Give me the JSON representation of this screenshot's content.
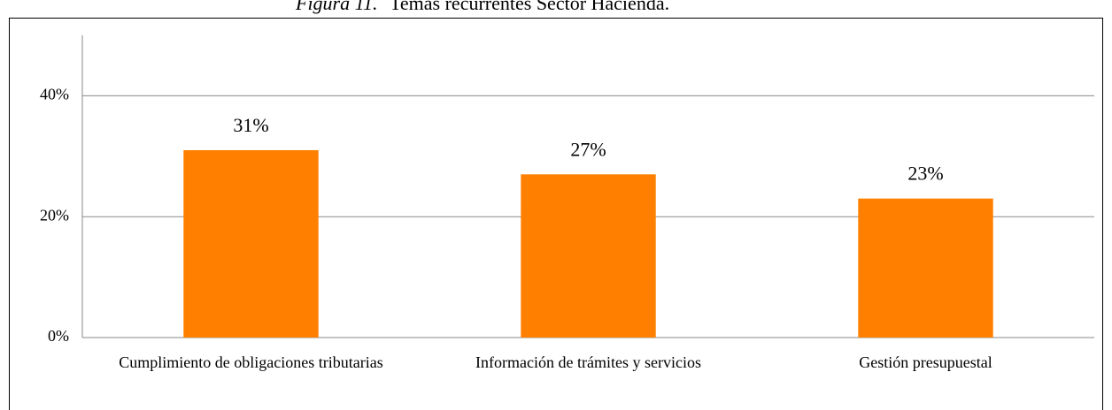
{
  "chart_data": {
    "type": "bar",
    "title_label": "Figura 11.",
    "title": "Temas recurrentes Sector Hacienda.",
    "categories": [
      "Cumplimiento de obligaciones tributarias",
      "Información de trámites y servicios",
      "Gestión presupuestal"
    ],
    "values": [
      31,
      27,
      23
    ],
    "value_labels": [
      "31%",
      "27%",
      "23%"
    ],
    "color": "#ff8000",
    "ylim": [
      0,
      50
    ],
    "yticks": [
      {
        "value": 0,
        "label": "0%"
      },
      {
        "value": 20,
        "label": "20%"
      },
      {
        "value": 40,
        "label": "40%"
      }
    ],
    "grid": true
  }
}
